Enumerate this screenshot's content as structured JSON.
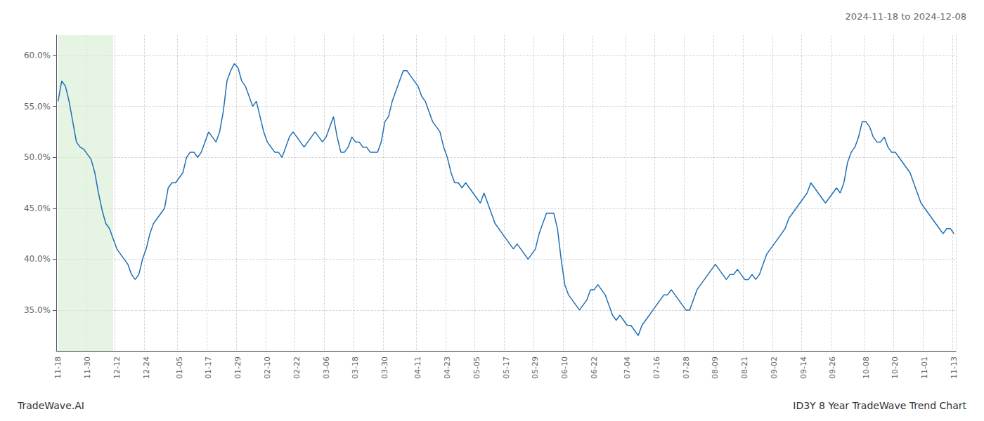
{
  "chart_data": {
    "type": "line",
    "title": "2024-11-18 to 2024-12-08",
    "annotations": [
      "TradeWave.AI",
      "ID3Y 8 Year TradeWave Trend Chart"
    ],
    "color": "#1f6fb5",
    "grid": true,
    "shaded_span": {
      "start": 0,
      "end": 15,
      "color": "#d6ecd2"
    },
    "ylim": [
      31.0,
      62.0
    ],
    "yticks": [
      {
        "value": 35.0,
        "label": "35.0%"
      },
      {
        "value": 40.0,
        "label": "40.0%"
      },
      {
        "value": 45.0,
        "label": "45.0%"
      },
      {
        "value": 50.0,
        "label": "50.0%"
      },
      {
        "value": 55.0,
        "label": "55.0%"
      },
      {
        "value": 60.0,
        "label": "60.0%"
      }
    ],
    "categories": [
      "11-18",
      null,
      null,
      null,
      null,
      null,
      null,
      null,
      "11-30",
      null,
      null,
      null,
      null,
      null,
      null,
      null,
      "12-12",
      null,
      null,
      null,
      null,
      null,
      null,
      null,
      "12-24",
      null,
      null,
      null,
      null,
      null,
      null,
      null,
      null,
      "01-05",
      null,
      null,
      null,
      null,
      null,
      null,
      null,
      "01-17",
      null,
      null,
      null,
      null,
      null,
      null,
      null,
      "01-29",
      null,
      null,
      null,
      null,
      null,
      null,
      null,
      "02-10",
      null,
      null,
      null,
      null,
      null,
      null,
      null,
      "02-22",
      null,
      null,
      null,
      null,
      null,
      null,
      null,
      "03-06",
      null,
      null,
      null,
      null,
      null,
      null,
      null,
      "03-18",
      null,
      null,
      null,
      null,
      null,
      null,
      null,
      "03-30",
      null,
      null,
      null,
      null,
      null,
      null,
      null,
      null,
      "04-11",
      null,
      null,
      null,
      null,
      null,
      null,
      null,
      "04-23",
      null,
      null,
      null,
      null,
      null,
      null,
      null,
      "05-05",
      null,
      null,
      null,
      null,
      null,
      null,
      null,
      "05-17",
      null,
      null,
      null,
      null,
      null,
      null,
      null,
      "05-29",
      null,
      null,
      null,
      null,
      null,
      null,
      null,
      "06-10",
      null,
      null,
      null,
      null,
      null,
      null,
      null,
      "06-22",
      null,
      null,
      null,
      null,
      null,
      null,
      null,
      null,
      "07-04",
      null,
      null,
      null,
      null,
      null,
      null,
      null,
      "07-16",
      null,
      null,
      null,
      null,
      null,
      null,
      null,
      "07-28",
      null,
      null,
      null,
      null,
      null,
      null,
      null,
      "08-09",
      null,
      null,
      null,
      null,
      null,
      null,
      null,
      "08-21",
      null,
      null,
      null,
      null,
      null,
      null,
      null,
      "09-02",
      null,
      null,
      null,
      null,
      null,
      null,
      null,
      "09-14",
      null,
      null,
      null,
      null,
      null,
      null,
      null,
      "09-26",
      null,
      null,
      null,
      null,
      null,
      null,
      null,
      null,
      "10-08",
      null,
      null,
      null,
      null,
      null,
      null,
      null,
      "10-20",
      null,
      null,
      null,
      null,
      null,
      null,
      null,
      "11-01",
      null,
      null,
      null,
      null,
      null,
      null,
      null,
      "11-13"
    ],
    "values": [
      55.5,
      57.5,
      57.0,
      55.5,
      53.5,
      51.5,
      51.0,
      50.8,
      50.3,
      49.8,
      48.5,
      46.5,
      44.8,
      43.5,
      43.0,
      42.0,
      41.0,
      40.5,
      40.0,
      39.5,
      38.5,
      38.0,
      38.5,
      40.0,
      41.0,
      42.5,
      43.5,
      44.0,
      44.5,
      45.0,
      47.0,
      47.5,
      47.5,
      48.0,
      48.5,
      50.0,
      50.5,
      50.5,
      50.0,
      50.5,
      51.5,
      52.5,
      52.0,
      51.5,
      52.5,
      54.5,
      57.5,
      58.5,
      59.2,
      58.8,
      57.5,
      57.0,
      56.0,
      55.0,
      55.5,
      54.0,
      52.5,
      51.5,
      51.0,
      50.5,
      50.5,
      50.0,
      51.0,
      52.0,
      52.5,
      52.0,
      51.5,
      51.0,
      51.5,
      52.0,
      52.5,
      52.0,
      51.5,
      52.0,
      53.0,
      54.0,
      52.0,
      50.5,
      50.5,
      51.0,
      52.0,
      51.5,
      51.5,
      51.0,
      51.0,
      50.5,
      50.5,
      50.5,
      51.5,
      53.5,
      54.0,
      55.5,
      56.5,
      57.5,
      58.5,
      58.5,
      58.0,
      57.5,
      57.0,
      56.0,
      55.5,
      54.5,
      53.5,
      53.0,
      52.5,
      51.0,
      50.0,
      48.5,
      47.5,
      47.5,
      47.0,
      47.5,
      47.0,
      46.5,
      46.0,
      45.5,
      46.5,
      45.5,
      44.5,
      43.5,
      43.0,
      42.5,
      42.0,
      41.5,
      41.0,
      41.5,
      41.0,
      40.5,
      40.0,
      40.5,
      41.0,
      42.5,
      43.5,
      44.5,
      44.5,
      44.5,
      43.0,
      40.0,
      37.5,
      36.5,
      36.0,
      35.5,
      35.0,
      35.5,
      36.0,
      37.0,
      37.0,
      37.5,
      37.0,
      36.5,
      35.5,
      34.5,
      34.0,
      34.5,
      34.0,
      33.5,
      33.5,
      33.0,
      32.5,
      33.5,
      34.0,
      34.5,
      35.0,
      35.5,
      36.0,
      36.5,
      36.5,
      37.0,
      36.5,
      36.0,
      35.5,
      35.0,
      35.0,
      36.0,
      37.0,
      37.5,
      38.0,
      38.5,
      39.0,
      39.5,
      39.0,
      38.5,
      38.0,
      38.5,
      38.5,
      39.0,
      38.5,
      38.0,
      38.0,
      38.5,
      38.0,
      38.5,
      39.5,
      40.5,
      41.0,
      41.5,
      42.0,
      42.5,
      43.0,
      44.0,
      44.5,
      45.0,
      45.5,
      46.0,
      46.5,
      47.5,
      47.0,
      46.5,
      46.0,
      45.5,
      46.0,
      46.5,
      47.0,
      46.5,
      47.5,
      49.5,
      50.5,
      51.0,
      52.0,
      53.5,
      53.5,
      53.0,
      52.0,
      51.5,
      51.5,
      52.0,
      51.0,
      50.5,
      50.5,
      50.0,
      49.5,
      49.0,
      48.5,
      47.5,
      46.5,
      45.5,
      45.0,
      44.5,
      44.0,
      43.5,
      43.0,
      42.5,
      43.0,
      43.0,
      42.5
    ]
  }
}
